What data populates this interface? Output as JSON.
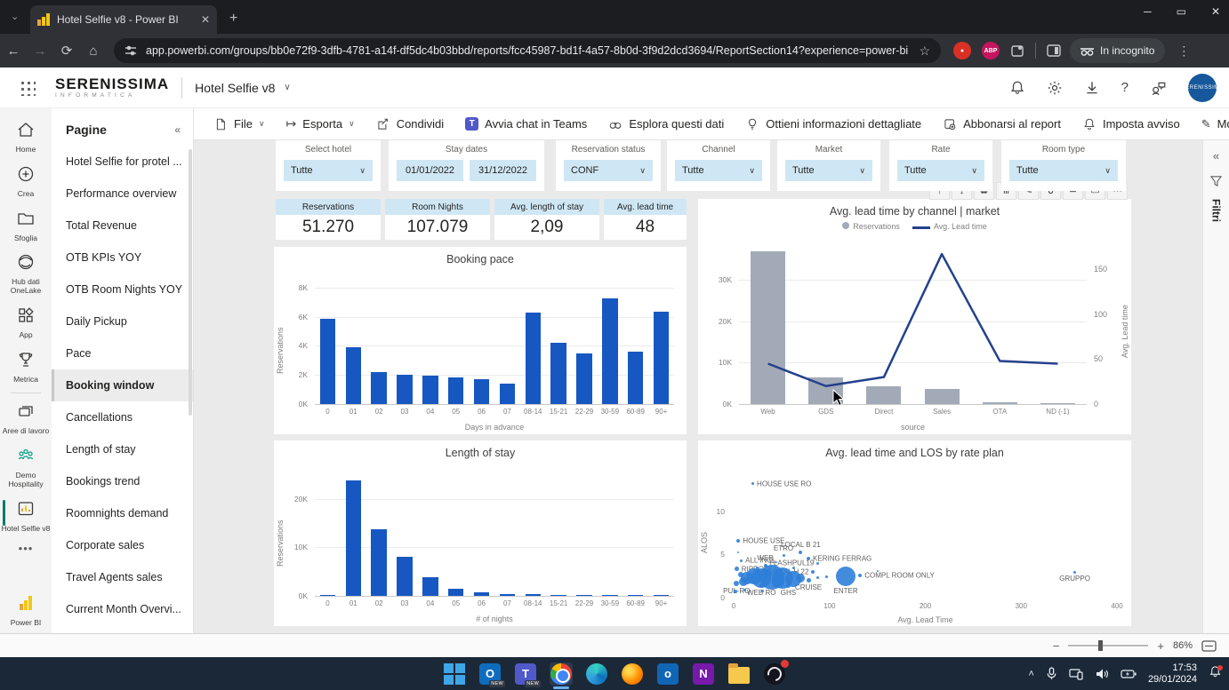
{
  "colors": {
    "accent_blue": "#1757c2",
    "bar_gray": "#a2aab8",
    "line_blue": "#24418c",
    "scatter_blue": "#2f7ed8",
    "slicer_bg": "#cfe7f4",
    "rail_active_teal": "#0a7a67",
    "pbi_yellow": "#f2c811"
  },
  "browser": {
    "tab_title": "Hotel Selfie v8 - Power BI",
    "url": "app.powerbi.com/groups/bb0e72f9-3dfb-4781-a14f-df5dc4b03bbd/reports/fcc45987-bd1f-4a57-8b0d-3f9d2dcd3694/ReportSection14?experience=power-bi",
    "incognito_label": "In incognito",
    "adblock_badge": "ABP",
    "icons": [
      "tab-search-chevron-icon",
      "powerbi-favicon",
      "close-icon",
      "new-tab-icon",
      "minimize-icon",
      "maximize-icon",
      "back-icon",
      "forward-icon",
      "reload-icon",
      "home-icon",
      "tune-icon",
      "star-icon",
      "recorder-extension-icon",
      "adblock-extension-icon",
      "extension-icon",
      "split-screen-icon",
      "incognito-icon",
      "kebab-menu-icon"
    ]
  },
  "pbi_header": {
    "logo_main": "SERENISSIMA",
    "logo_sub": "INFORMATICA",
    "report_title": "Hotel Selfie v8",
    "avatar_text": "SERENISSIMA",
    "icons": [
      "waffle-menu-icon",
      "chevron-down-icon",
      "bell-icon",
      "gear-icon",
      "download-icon",
      "help-icon",
      "feedback-icon",
      "avatar"
    ]
  },
  "action_bar": {
    "items": [
      {
        "label": "File",
        "icon": "file-icon",
        "chevron": true
      },
      {
        "label": "Esporta",
        "icon": "export-icon",
        "chevron": true
      },
      {
        "label": "Condividi",
        "icon": "share-icon",
        "chevron": false
      },
      {
        "label": "Avvia chat in Teams",
        "icon": "teams-icon",
        "chevron": false
      },
      {
        "label": "Esplora questi dati",
        "icon": "explore-icon",
        "chevron": false
      },
      {
        "label": "Ottieni informazioni dettagliate",
        "icon": "lightbulb-icon",
        "chevron": false
      },
      {
        "label": "Abbonarsi al report",
        "icon": "subscribe-icon",
        "chevron": false
      },
      {
        "label": "Imposta avviso",
        "icon": "alert-bell-icon",
        "chevron": false
      },
      {
        "label": "Modifica",
        "icon": "pencil-icon",
        "chevron": false
      },
      {
        "label": "⋯",
        "icon": "",
        "chevron": false
      }
    ]
  },
  "nav_rail": {
    "items": [
      {
        "label": "Home",
        "icon": "home-icon",
        "active": false
      },
      {
        "label": "Crea",
        "icon": "create-plus-icon",
        "active": false
      },
      {
        "label": "Sfoglia",
        "icon": "browse-folder-icon",
        "active": false
      },
      {
        "label": "Hub dati OneLake",
        "icon": "onelake-hub-icon",
        "active": false
      },
      {
        "label": "App",
        "icon": "apps-icon",
        "active": false
      },
      {
        "label": "Metrica",
        "icon": "metrics-trophy-icon",
        "active": false
      },
      {
        "label": "Aree di lavoro",
        "icon": "workspaces-icon",
        "active": false
      },
      {
        "label": "Demo Hospitality",
        "icon": "people-icon",
        "active": false
      },
      {
        "label": "Hotel Selfie v8",
        "icon": "report-barchart-icon",
        "active": true
      }
    ],
    "more_label": "•••",
    "footer_label": "Power BI",
    "footer_icon": "powerbi-logo-icon"
  },
  "pages_panel": {
    "title": "Pagine",
    "collapse_icon": "chevrons-left-icon",
    "items": [
      "Hotel Selfie for protel ...",
      "Performance overview",
      "Total Revenue",
      "OTB KPIs YOY",
      "OTB Room Nights YOY",
      "Daily Pickup",
      "Pace",
      "Booking window",
      "Cancellations",
      "Length of stay",
      "Bookings trend",
      "Roomnights demand",
      "Corporate sales",
      "Travel Agents sales",
      "Current Month Overvi..."
    ],
    "active_index": 7
  },
  "slicers": [
    {
      "label": "Select hotel",
      "type": "dropdown",
      "value": "Tutte"
    },
    {
      "label": "Stay dates",
      "type": "dates",
      "values": [
        "01/01/2022",
        "31/12/2022"
      ]
    },
    {
      "label": "Reservation status",
      "type": "dropdown",
      "value": "CONF"
    },
    {
      "label": "Channel",
      "type": "dropdown",
      "value": "Tutte"
    },
    {
      "label": "Market",
      "type": "dropdown",
      "value": "Tutte"
    },
    {
      "label": "Rate",
      "type": "dropdown",
      "value": "Tutte"
    },
    {
      "label": "Room type",
      "type": "dropdown",
      "value": "Tutte"
    }
  ],
  "kpis": [
    {
      "label": "Reservations",
      "value": "51.270"
    },
    {
      "label": "Room Nights",
      "value": "107.079"
    },
    {
      "label": "Avg. length of stay",
      "value": "2,09"
    },
    {
      "label": "Avg. lead time",
      "value": "48"
    }
  ],
  "drill_toolbar": {
    "icons": [
      "drill-up-icon",
      "drill-down-icon",
      "expand-next-level-icon",
      "drill-mode-icon",
      "analyze-icon",
      "lasso-select-icon",
      "filter-icon",
      "comment-icon",
      "more-options-icon"
    ],
    "glyphs": [
      "↑",
      "↓",
      "⇊",
      "⋔",
      "✎",
      "∪",
      "≃",
      "▭",
      "⋯"
    ]
  },
  "filters_pane": {
    "label": "Filtri",
    "icons": [
      "chevrons-left-icon",
      "filter-funnel-icon"
    ]
  },
  "status_bar": {
    "zoom": "86%",
    "icons": [
      "zoom-out-icon",
      "zoom-slider",
      "zoom-in-icon",
      "fit-to-page-icon"
    ]
  },
  "taskbar": {
    "time": "17:53",
    "date": "29/01/2024",
    "icons": [
      "start-icon",
      "outlook-new-icon",
      "teams-new-icon",
      "chrome-icon",
      "edge-icon",
      "firefox-icon",
      "outlook-icon",
      "onenote-icon",
      "file-explorer-icon",
      "obs-icon"
    ],
    "badges": {
      "outlook": "NEW",
      "teams": "NEW"
    },
    "tray_icons": [
      "tray-chevron-up-icon",
      "microphone-icon",
      "cast-screen-icon",
      "speaker-icon",
      "battery-icon",
      "notification-bell-icon"
    ]
  },
  "chart_data": [
    {
      "type": "bar",
      "title": "Booking pace",
      "xlabel": "Days in advance",
      "ylabel": "Reservations",
      "color": "#1757c2",
      "grid": true,
      "ylim": [
        0,
        8.6
      ],
      "yticks": [
        [
          0,
          "0K"
        ],
        [
          2,
          "2K"
        ],
        [
          4,
          "4K"
        ],
        [
          6,
          "6K"
        ],
        [
          8,
          "8K"
        ]
      ],
      "categories": [
        "0",
        "01",
        "02",
        "03",
        "04",
        "05",
        "06",
        "07",
        "08-14",
        "15-21",
        "22-29",
        "30-59",
        "60-89",
        "90+"
      ],
      "values": [
        5.85,
        3.9,
        2.2,
        2.0,
        1.95,
        1.8,
        1.7,
        1.4,
        6.3,
        4.2,
        3.45,
        7.25,
        3.6,
        6.35
      ],
      "value_unit": "K reservations"
    },
    {
      "type": "combo",
      "title": "Avg. lead time by channel | market",
      "xlabel": "source",
      "ylabel_right": "Avg. Lead time",
      "legend": [
        {
          "label": "Reservations",
          "swatch": "dot",
          "color": "#a2aab8"
        },
        {
          "label": "Avg. Lead time",
          "swatch": "line",
          "color": "#24418c"
        }
      ],
      "categories": [
        "Web",
        "GDS",
        "Direct",
        "Sales",
        "OTA",
        "ND (-1)"
      ],
      "series": [
        {
          "name": "Reservations",
          "type": "bar",
          "unit": "K",
          "color": "#a2aab8",
          "values": [
            37,
            6.5,
            4.2,
            3.6,
            0.35,
            0.12
          ]
        },
        {
          "name": "Avg. Lead time",
          "type": "line",
          "color": "#24418c",
          "values": [
            45,
            20,
            30,
            167,
            48,
            45
          ]
        }
      ],
      "ylim_left": [
        0,
        38
      ],
      "yticks_left": [
        [
          0,
          "0K"
        ],
        [
          10,
          "10K"
        ],
        [
          20,
          "20K"
        ],
        [
          30,
          "30K"
        ]
      ],
      "ylim_right": [
        0,
        175
      ],
      "yticks_right": [
        [
          0,
          "0"
        ],
        [
          50,
          "50"
        ],
        [
          100,
          "100"
        ],
        [
          150,
          "150"
        ]
      ]
    },
    {
      "type": "bar",
      "title": "Length of stay",
      "xlabel": "# of nights",
      "ylabel": "Reservations",
      "color": "#1757c2",
      "grid": true,
      "ylim": [
        0,
        25.5
      ],
      "yticks": [
        [
          0,
          "0K"
        ],
        [
          10,
          "10K"
        ],
        [
          20,
          "20K"
        ]
      ],
      "categories": [
        "0",
        "01",
        "02",
        "03",
        "04",
        "05",
        "06",
        "07",
        "08-14",
        "15-21",
        "22-29",
        "30-59",
        "60-89",
        "90+"
      ],
      "values": [
        0.15,
        23.8,
        13.7,
        8.0,
        3.8,
        1.4,
        0.7,
        0.35,
        0.3,
        0.15,
        0.12,
        0.12,
        0.1,
        0.12
      ],
      "value_unit": "K reservations"
    },
    {
      "type": "scatter",
      "title": "Avg. lead time and LOS by rate plan",
      "xlabel": "Avg. Lead Time",
      "ylabel": "ALOS",
      "color": "#2f7ed8",
      "xlim": [
        0,
        400
      ],
      "ylim": [
        0,
        14.5
      ],
      "xticks": [
        [
          0,
          "0"
        ],
        [
          100,
          "100"
        ],
        [
          200,
          "200"
        ],
        [
          300,
          "300"
        ],
        [
          400,
          "400"
        ]
      ],
      "yticks": [
        [
          0,
          "0"
        ],
        [
          5,
          "5"
        ],
        [
          10,
          "10"
        ]
      ],
      "points": [
        {
          "label": "HOUSE USE RO",
          "x": 20,
          "y": 13.2,
          "r": 1.5,
          "lp": "right"
        },
        {
          "label": "HOUSE USE",
          "x": 5,
          "y": 6.6,
          "r": 2,
          "lp": "right"
        },
        {
          "label": "LOCAL B 21",
          "x": 70,
          "y": 5.2,
          "r": 2,
          "lp": "above"
        },
        {
          "label": "ETRO",
          "x": 52,
          "y": 4.9,
          "r": 1.5,
          "lp": "above"
        },
        {
          "label": "KERING FERRAG",
          "x": 78,
          "y": 4.5,
          "r": 2,
          "lp": "right"
        },
        {
          "label": "ALL INCL",
          "x": 8,
          "y": 4.3,
          "r": 1.5,
          "lp": "right"
        },
        {
          "label": "WEB",
          "x": 33,
          "y": 3.7,
          "r": 2,
          "lp": "above"
        },
        {
          "label": "FLASHPUL19",
          "x": 88,
          "y": 4.0,
          "r": 1.5,
          "lp": "left"
        },
        {
          "label": "RIPROTEZ",
          "x": 3,
          "y": 3.3,
          "r": 2.5,
          "lp": "right"
        },
        {
          "label": "LOCAL H 22",
          "x": 83,
          "y": 3.0,
          "r": 2,
          "lp": "left"
        },
        {
          "label": "COMPL ROOM ONLY",
          "x": 132,
          "y": 2.6,
          "r": 2,
          "lp": "right"
        },
        {
          "label": "CRUISE",
          "x": 78,
          "y": 2.0,
          "r": 2.5,
          "lp": "below"
        },
        {
          "label": "ENTER",
          "x": 117,
          "y": 2.5,
          "r": 11,
          "lp": "below"
        },
        {
          "label": "WEB RO",
          "x": 29,
          "y": 1.4,
          "r": 2.5,
          "lp": "below"
        },
        {
          "label": "GHS",
          "x": 57,
          "y": 1.4,
          "r": 2.5,
          "lp": "below"
        },
        {
          "label": "PUL-RO",
          "x": 3,
          "y": 1.6,
          "r": 3,
          "lp": "below"
        },
        {
          "label": "GRUPPO",
          "x": 356,
          "y": 2.9,
          "r": 1.5,
          "lp": "below"
        },
        {
          "x": 14,
          "y": 2.3,
          "r": 7
        },
        {
          "x": 21,
          "y": 2.5,
          "r": 9
        },
        {
          "x": 29,
          "y": 2.3,
          "r": 11
        },
        {
          "x": 40,
          "y": 2.4,
          "r": 14
        },
        {
          "x": 51,
          "y": 2.3,
          "r": 12
        },
        {
          "x": 62,
          "y": 2.2,
          "r": 9
        },
        {
          "x": 46,
          "y": 1.9,
          "r": 7
        },
        {
          "x": 10,
          "y": 1.9,
          "r": 5
        },
        {
          "x": 7,
          "y": 2.7,
          "r": 3
        },
        {
          "x": 35,
          "y": 2.8,
          "r": 5
        },
        {
          "x": 70,
          "y": 2.3,
          "r": 5
        },
        {
          "x": 88,
          "y": 2.3,
          "r": 1.5
        },
        {
          "x": 97,
          "y": 2.4,
          "r": 1.5
        },
        {
          "x": 150,
          "y": 3.1,
          "r": 1
        },
        {
          "x": 63,
          "y": 3.4,
          "r": 1.5
        },
        {
          "x": 45,
          "y": 4.1,
          "r": 1
        },
        {
          "x": 25,
          "y": 3.4,
          "r": 1.5
        },
        {
          "x": 5,
          "y": 5.2,
          "r": 1
        },
        {
          "x": 12,
          "y": 0.9,
          "r": 1.5
        },
        {
          "x": 30,
          "y": 0.8,
          "r": 1.5
        },
        {
          "x": 2,
          "y": 0.7,
          "r": 2
        }
      ]
    }
  ]
}
